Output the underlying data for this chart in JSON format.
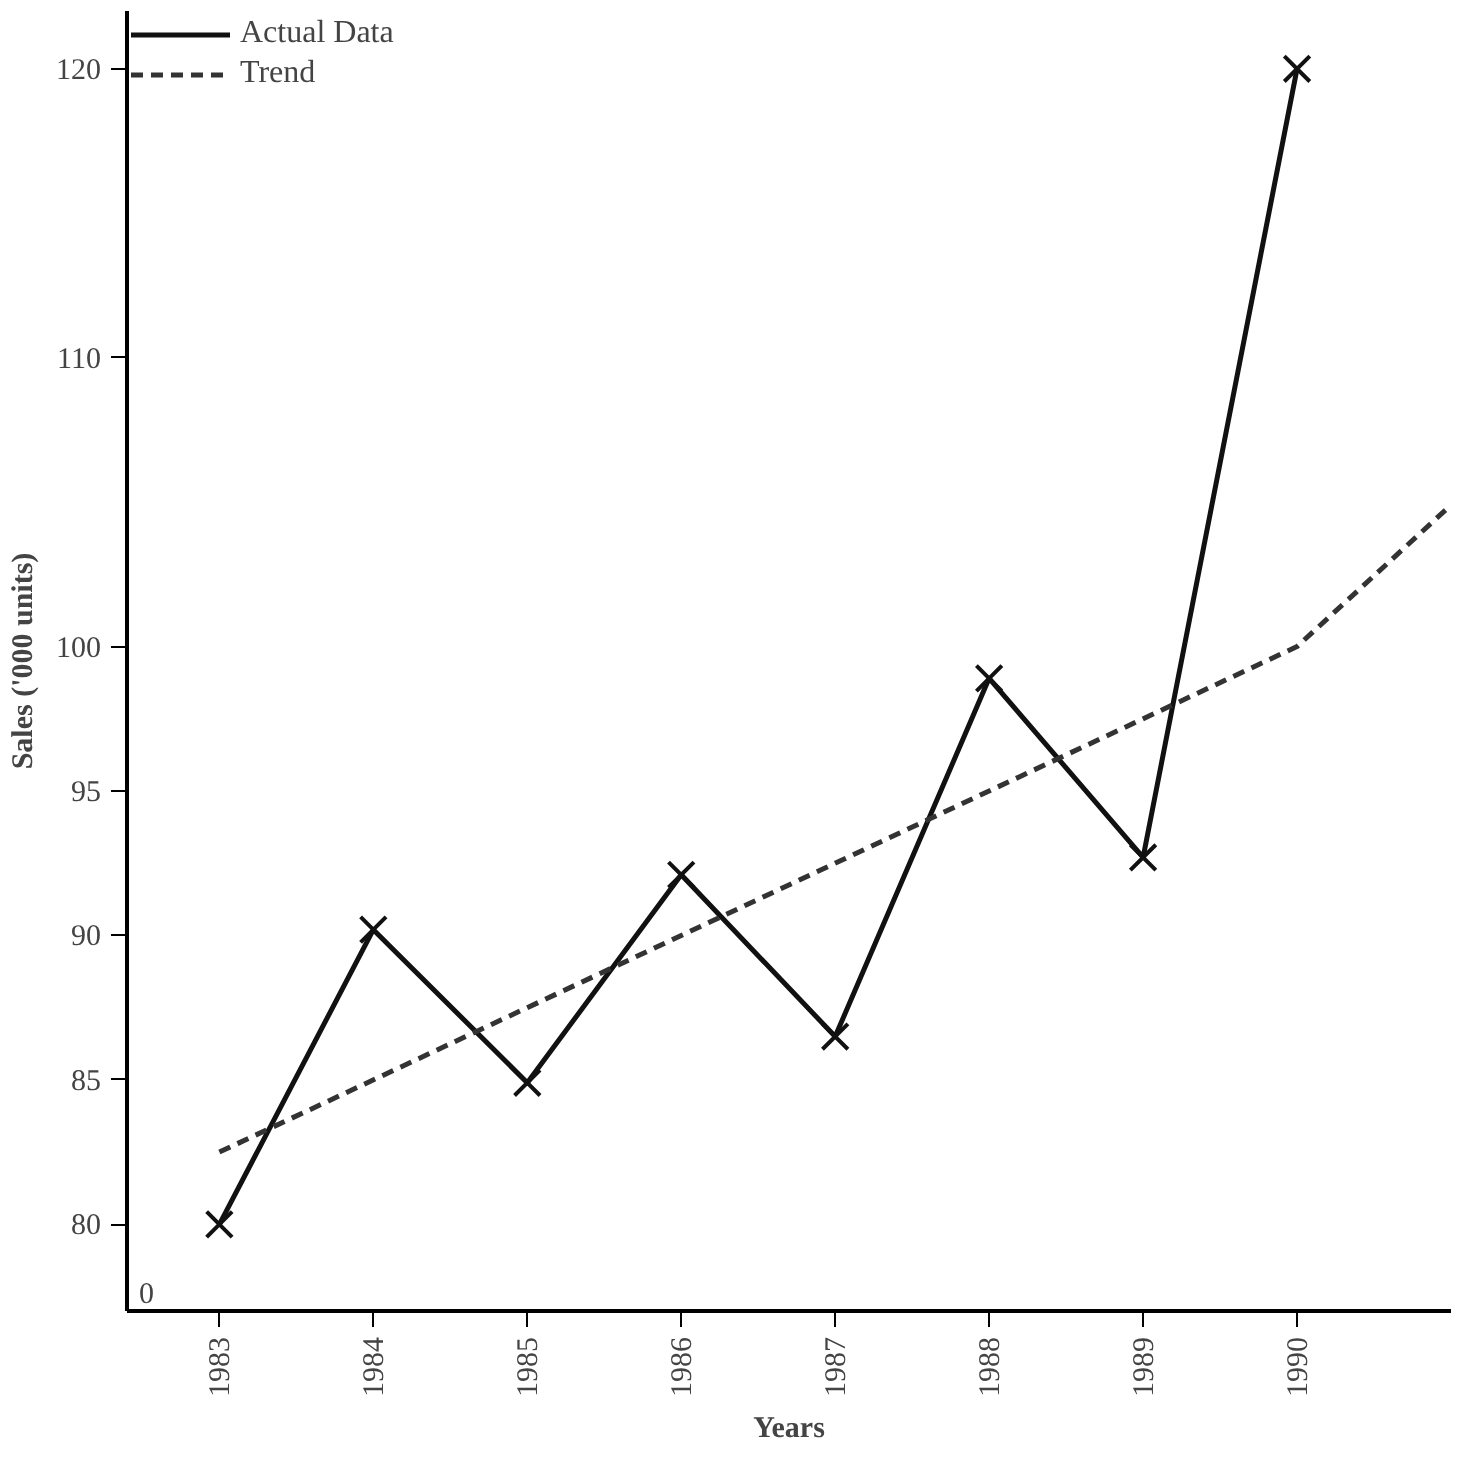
{
  "chart_data": {
    "type": "line",
    "xlabel": "Years",
    "ylabel": "Sales ('000 units)",
    "xlim": [
      1982.4,
      1991
    ],
    "ylim": [
      77,
      122
    ],
    "xticks": [
      1983,
      1984,
      1985,
      1986,
      1987,
      1988,
      1989,
      1990
    ],
    "yticks": [
      80,
      85,
      90,
      95,
      100,
      110,
      120
    ],
    "grid": false,
    "legend": "top left",
    "annotations": [
      "0"
    ],
    "series": [
      {
        "name": "Actual Data",
        "color": "#111111",
        "x": [
          1983,
          1984,
          1985,
          1986,
          1987,
          1988,
          1989,
          1990
        ],
        "values": [
          80,
          90.2,
          84.9,
          92.1,
          86.5,
          98.9,
          92.7,
          120
        ],
        "marker": "cross",
        "line_style": "solid"
      },
      {
        "name": "Trend",
        "color": "#333333",
        "x": [
          1983,
          1990,
          1991
        ],
        "values": [
          82.5,
          100,
          104.9
        ],
        "marker": "none",
        "line_style": "dashed"
      }
    ]
  }
}
